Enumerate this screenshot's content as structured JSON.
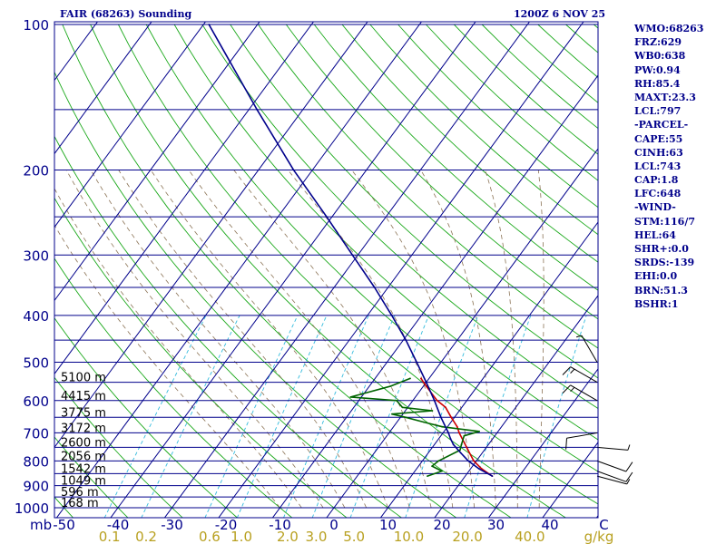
{
  "header": {
    "station_title": "FAIR (68263) Sounding",
    "valid_time": "1200Z  6 NOV 25"
  },
  "stats": [
    "WMO:68263",
    "FRZ:629",
    "WB0:638",
    "PW:0.94",
    "RH:85.4",
    "MAXT:23.3",
    "LCL:797",
    "-PARCEL-",
    "CAPE:55",
    "CINH:63",
    "LCL:743",
    "CAP:1.8",
    "LFC:648",
    "-WIND-",
    "STM:116/7",
    "HEL:64",
    "SHR+:0.0",
    "SRDS:-139",
    "EHI:0.0",
    "BRN:51.3",
    "BSHR:1"
  ],
  "chart_data": {
    "type": "line",
    "diagram": "skew-T log-p",
    "pressure_axis": {
      "unit_label": "mb",
      "scale": "log",
      "range": [
        1000,
        100
      ],
      "tick_labels": [
        100,
        200,
        300,
        400,
        500,
        600,
        700,
        800,
        900,
        1000
      ],
      "isobars": [
        100,
        150,
        200,
        250,
        300,
        350,
        400,
        450,
        500,
        550,
        600,
        650,
        700,
        750,
        800,
        850,
        900,
        950,
        1000
      ]
    },
    "temperature_axis": {
      "tick_labels": [
        "-50",
        "-40",
        "-30",
        "-20",
        "-10",
        "0",
        "10",
        "20",
        "30",
        "40",
        "C"
      ],
      "range": [
        -50,
        50
      ]
    },
    "mixing_ratio_axis": {
      "unit_label": "g/kg",
      "tick_labels": [
        "0.1",
        "0.2",
        "0.6",
        "1.0",
        "2.0",
        "3.0",
        "5.0",
        "10.0",
        "20.0",
        "40.0"
      ],
      "values": [
        0.1,
        0.2,
        0.6,
        1.0,
        2.0,
        3.0,
        5.0,
        10.0,
        20.0,
        40.0
      ]
    },
    "height_labels": [
      {
        "p": 1000,
        "label": "168 m"
      },
      {
        "p": 950,
        "label": "596 m"
      },
      {
        "p": 900,
        "label": "1049 m"
      },
      {
        "p": 850,
        "label": "1542 m"
      },
      {
        "p": 800,
        "label": "2056 m"
      },
      {
        "p": 750,
        "label": "2600 m"
      },
      {
        "p": 700,
        "label": "3172 m"
      },
      {
        "p": 650,
        "label": "3775 m"
      },
      {
        "p": 600,
        "label": "4415 m"
      },
      {
        "p": 550,
        "label": "5100 m"
      }
    ],
    "series": [
      {
        "name": "",
        "color": "#cc0000",
        "points": [
          {
            "p": 860,
            "t": 25.0
          },
          {
            "p": 830,
            "t": 22.0
          },
          {
            "p": 800,
            "t": 19.5
          },
          {
            "p": 760,
            "t": 17.0
          },
          {
            "p": 700,
            "t": 13.0
          },
          {
            "p": 680,
            "t": 11.8
          },
          {
            "p": 650,
            "t": 9.4
          },
          {
            "p": 620,
            "t": 7.0
          },
          {
            "p": 600,
            "t": 4.5
          },
          {
            "p": 560,
            "t": 0.5
          },
          {
            "p": 540,
            "t": -1.5
          }
        ]
      },
      {
        "name": "",
        "color": "#006400",
        "points": [
          {
            "p": 860,
            "t": 13.0
          },
          {
            "p": 840,
            "t": 15.0
          },
          {
            "p": 820,
            "t": 12.5
          },
          {
            "p": 800,
            "t": 13.0
          },
          {
            "p": 760,
            "t": 15.5
          },
          {
            "p": 740,
            "t": 15.0
          },
          {
            "p": 710,
            "t": 14.3
          },
          {
            "p": 695,
            "t": 16.5
          },
          {
            "p": 680,
            "t": 9.0
          },
          {
            "p": 665,
            "t": 5.0
          },
          {
            "p": 650,
            "t": 1.0
          },
          {
            "p": 640,
            "t": -2.0
          },
          {
            "p": 630,
            "t": 5.0
          },
          {
            "p": 620,
            "t": -1.0
          },
          {
            "p": 600,
            "t": -3.0
          },
          {
            "p": 590,
            "t": -12.0
          },
          {
            "p": 560,
            "t": -6.0
          },
          {
            "p": 540,
            "t": -3.5
          }
        ]
      },
      {
        "name": "",
        "color": "#00008b",
        "points": [
          {
            "p": 860,
            "t": 25.0
          },
          {
            "p": 830,
            "t": 21.5
          },
          {
            "p": 800,
            "t": 18.5
          },
          {
            "p": 770,
            "t": 16.0
          },
          {
            "p": 740,
            "t": 13.5
          },
          {
            "p": 720,
            "t": 12.2
          },
          {
            "p": 700,
            "t": 11.0
          },
          {
            "p": 650,
            "t": 7.5
          },
          {
            "p": 600,
            "t": 4.0
          },
          {
            "p": 550,
            "t": 0.0
          },
          {
            "p": 500,
            "t": -4.5
          },
          {
            "p": 450,
            "t": -9.5
          },
          {
            "p": 400,
            "t": -15.5
          },
          {
            "p": 350,
            "t": -22.5
          },
          {
            "p": 300,
            "t": -31.0
          },
          {
            "p": 250,
            "t": -41.0
          },
          {
            "p": 200,
            "t": -53.5
          },
          {
            "p": 150,
            "t": -68.5
          },
          {
            "p": 100,
            "t": -89.0
          }
        ]
      }
    ],
    "wind_barbs": [
      {
        "p": 860,
        "dir": 105,
        "spd": 5
      },
      {
        "p": 840,
        "dir": 110,
        "spd": 10
      },
      {
        "p": 800,
        "dir": 110,
        "spd": 10
      },
      {
        "p": 750,
        "dir": 95,
        "spd": 5
      },
      {
        "p": 700,
        "dir": 260,
        "spd": 10
      },
      {
        "p": 600,
        "dir": 300,
        "spd": 15
      },
      {
        "p": 550,
        "dir": 300,
        "spd": 15
      },
      {
        "p": 500,
        "dir": 330,
        "spd": 5
      }
    ]
  }
}
